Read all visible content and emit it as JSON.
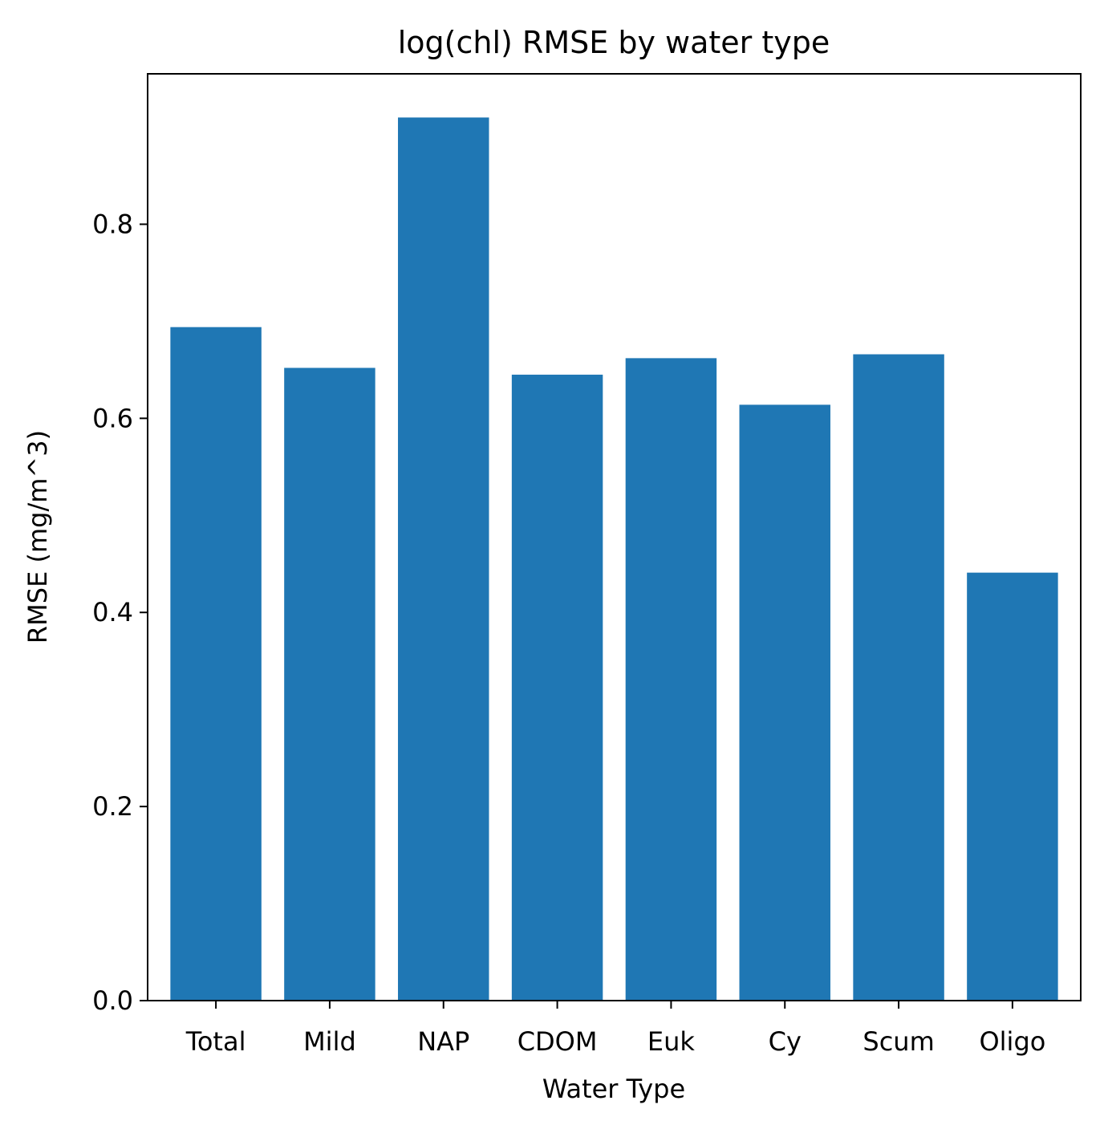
{
  "chart_data": {
    "type": "bar",
    "title": "log(chl) RMSE by water type",
    "xlabel": "Water Type",
    "ylabel": "RMSE (mg/m^3)",
    "categories": [
      "Total",
      "Mild",
      "NAP",
      "CDOM",
      "Euk",
      "Cy",
      "Scum",
      "Oligo"
    ],
    "values": [
      0.694,
      0.652,
      0.91,
      0.645,
      0.662,
      0.614,
      0.666,
      0.441
    ],
    "ylim": [
      0,
      0.955
    ],
    "yticks": [
      0.0,
      0.2,
      0.4,
      0.6,
      0.8
    ],
    "ytick_labels": [
      "0.0",
      "0.2",
      "0.4",
      "0.6",
      "0.8"
    ],
    "bar_color": "#1f77b4",
    "grid": false,
    "legend": "none"
  }
}
